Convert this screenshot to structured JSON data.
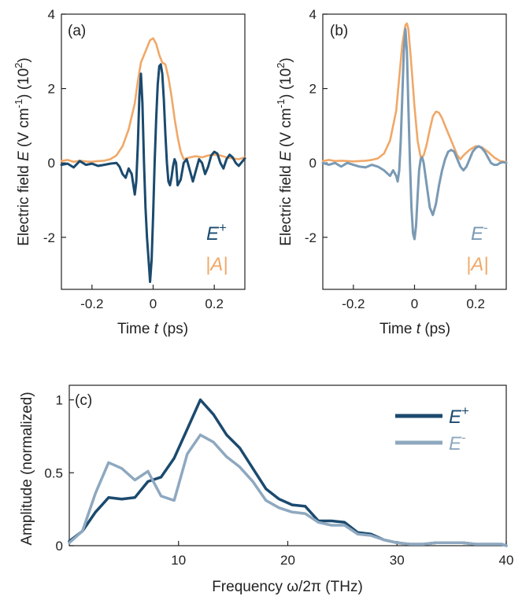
{
  "chart_data": [
    {
      "type": "line",
      "panel_label": "(a)",
      "xlabel": "Time",
      "xlabel_symbol": "t",
      "xlabel_unit": "(ps)",
      "ylabel": "Electric field",
      "ylabel_symbol": "E",
      "ylabel_unit": "(V cm",
      "ylabel_unit_exp": "-1",
      "ylabel_scale": "(10",
      "ylabel_scale_exp": "2",
      "ylabel_close": ")",
      "xlim": [
        -0.3,
        0.3
      ],
      "ylim": [
        -3.4,
        4.0
      ],
      "xticks": [
        -0.2,
        0.0,
        0.2
      ],
      "xtick_labels": [
        "-0.2",
        "0",
        "0.2"
      ],
      "yticks": [
        -2,
        0,
        2,
        4
      ],
      "ytick_labels": [
        "-2",
        "0",
        "2",
        "4"
      ],
      "legend": [
        {
          "label": "E",
          "superscript": "+",
          "color": "#1b4a6e"
        },
        {
          "label": "|A|",
          "color": "#f0a868"
        }
      ],
      "series": [
        {
          "name": "E+",
          "color": "#1b4a6e",
          "x": [
            -0.3,
            -0.28,
            -0.26,
            -0.24,
            -0.22,
            -0.2,
            -0.18,
            -0.16,
            -0.14,
            -0.12,
            -0.11,
            -0.1,
            -0.09,
            -0.08,
            -0.07,
            -0.06,
            -0.055,
            -0.05,
            -0.045,
            -0.04,
            -0.035,
            -0.03,
            -0.025,
            -0.02,
            -0.015,
            -0.01,
            -0.005,
            0.0,
            0.005,
            0.01,
            0.015,
            0.02,
            0.025,
            0.03,
            0.035,
            0.04,
            0.045,
            0.05,
            0.055,
            0.06,
            0.065,
            0.07,
            0.075,
            0.08,
            0.09,
            0.1,
            0.11,
            0.12,
            0.13,
            0.14,
            0.15,
            0.16,
            0.17,
            0.18,
            0.19,
            0.2,
            0.21,
            0.22,
            0.23,
            0.24,
            0.25,
            0.26,
            0.27,
            0.28,
            0.29,
            0.3
          ],
          "y": [
            -0.05,
            -0.02,
            -0.12,
            0.05,
            -0.05,
            -0.02,
            -0.08,
            -0.05,
            -0.02,
            0.0,
            -0.1,
            -0.3,
            -0.4,
            -0.15,
            -0.3,
            -0.85,
            -0.5,
            0.5,
            1.8,
            2.4,
            1.6,
            0.0,
            -1.2,
            -2.0,
            -2.6,
            -3.2,
            -2.6,
            -1.4,
            0.0,
            1.2,
            2.1,
            2.6,
            2.65,
            2.4,
            1.7,
            0.8,
            0.0,
            -0.5,
            -0.6,
            -0.4,
            -0.1,
            0.1,
            0.0,
            -0.6,
            -0.45,
            0.0,
            0.1,
            -0.2,
            -0.5,
            -0.2,
            0.1,
            0.0,
            -0.3,
            -0.1,
            0.2,
            0.3,
            0.25,
            0.0,
            -0.15,
            0.1,
            0.22,
            0.15,
            0.0,
            -0.08,
            0.02,
            0.12
          ]
        },
        {
          "name": "|A|",
          "color": "#f0a868",
          "x": [
            -0.3,
            -0.28,
            -0.26,
            -0.24,
            -0.22,
            -0.2,
            -0.18,
            -0.16,
            -0.14,
            -0.12,
            -0.1,
            -0.08,
            -0.06,
            -0.05,
            -0.04,
            -0.03,
            -0.02,
            -0.01,
            0.0,
            0.01,
            0.02,
            0.03,
            0.04,
            0.05,
            0.06,
            0.07,
            0.08,
            0.09,
            0.1,
            0.12,
            0.14,
            0.16,
            0.18,
            0.2,
            0.22,
            0.24,
            0.26,
            0.28,
            0.3
          ],
          "y": [
            0.05,
            0.08,
            0.03,
            0.06,
            0.04,
            0.03,
            0.05,
            0.06,
            0.1,
            0.2,
            0.45,
            0.9,
            1.6,
            2.2,
            2.7,
            2.9,
            3.1,
            3.3,
            3.35,
            3.2,
            2.9,
            2.7,
            2.65,
            2.3,
            1.8,
            1.2,
            0.7,
            0.3,
            0.1,
            0.15,
            0.18,
            0.15,
            0.2,
            0.22,
            0.2,
            0.15,
            0.12,
            0.1,
            0.15
          ]
        }
      ]
    },
    {
      "type": "line",
      "panel_label": "(b)",
      "xlabel": "Time",
      "xlabel_symbol": "t",
      "xlabel_unit": "(ps)",
      "ylabel": "Electric field",
      "ylabel_symbol": "E",
      "ylabel_unit": "(V cm",
      "ylabel_unit_exp": "-1",
      "ylabel_scale": "(10",
      "ylabel_scale_exp": "2",
      "ylabel_close": ")",
      "xlim": [
        -0.3,
        0.3
      ],
      "ylim": [
        -3.4,
        4.0
      ],
      "xticks": [
        -0.2,
        0.0,
        0.2
      ],
      "xtick_labels": [
        "-0.2",
        "0",
        "0.2"
      ],
      "yticks": [
        -2,
        0,
        2,
        4
      ],
      "ytick_labels": [
        "-2",
        "0",
        "2",
        "4"
      ],
      "legend": [
        {
          "label": "E",
          "superscript": "-",
          "color": "#7a9ab4"
        },
        {
          "label": "|A|",
          "color": "#f0a868"
        }
      ],
      "series": [
        {
          "name": "E-",
          "color": "#7a9ab4",
          "x": [
            -0.3,
            -0.28,
            -0.26,
            -0.24,
            -0.22,
            -0.2,
            -0.18,
            -0.16,
            -0.14,
            -0.12,
            -0.1,
            -0.08,
            -0.07,
            -0.06,
            -0.055,
            -0.05,
            -0.045,
            -0.04,
            -0.035,
            -0.03,
            -0.025,
            -0.02,
            -0.015,
            -0.01,
            -0.005,
            0.0,
            0.005,
            0.01,
            0.015,
            0.02,
            0.025,
            0.03,
            0.04,
            0.05,
            0.06,
            0.07,
            0.08,
            0.09,
            0.1,
            0.11,
            0.12,
            0.13,
            0.14,
            0.15,
            0.16,
            0.17,
            0.18,
            0.19,
            0.2,
            0.21,
            0.22,
            0.23,
            0.24,
            0.25,
            0.26,
            0.27,
            0.28,
            0.29,
            0.3
          ],
          "y": [
            0.0,
            -0.05,
            0.0,
            -0.1,
            0.0,
            -0.05,
            -0.1,
            -0.12,
            -0.05,
            -0.1,
            -0.2,
            -0.35,
            -0.2,
            -0.35,
            -0.5,
            -0.2,
            0.6,
            1.8,
            3.0,
            3.6,
            3.0,
            1.5,
            0.0,
            -1.2,
            -1.9,
            -2.05,
            -1.7,
            -0.9,
            -0.2,
            0.1,
            0.15,
            0.0,
            -0.6,
            -1.2,
            -1.4,
            -1.1,
            -0.6,
            -0.2,
            0.1,
            0.3,
            0.35,
            0.3,
            0.1,
            -0.1,
            -0.2,
            -0.1,
            0.1,
            0.3,
            0.4,
            0.45,
            0.4,
            0.3,
            0.15,
            0.0,
            -0.05,
            -0.05,
            0.0,
            0.02,
            0.0
          ]
        },
        {
          "name": "|A|",
          "color": "#f0a868",
          "x": [
            -0.3,
            -0.28,
            -0.26,
            -0.24,
            -0.22,
            -0.2,
            -0.18,
            -0.16,
            -0.14,
            -0.12,
            -0.1,
            -0.08,
            -0.06,
            -0.05,
            -0.04,
            -0.03,
            -0.025,
            -0.02,
            -0.01,
            0.0,
            0.01,
            0.02,
            0.03,
            0.04,
            0.05,
            0.06,
            0.07,
            0.08,
            0.09,
            0.1,
            0.11,
            0.12,
            0.13,
            0.14,
            0.15,
            0.16,
            0.18,
            0.2,
            0.22,
            0.24,
            0.26,
            0.28,
            0.3
          ],
          "y": [
            0.05,
            0.08,
            0.05,
            0.06,
            0.05,
            0.04,
            0.05,
            0.06,
            0.08,
            0.12,
            0.25,
            0.6,
            1.4,
            2.3,
            3.2,
            3.7,
            3.75,
            3.6,
            2.6,
            1.5,
            0.6,
            0.15,
            0.2,
            0.5,
            0.9,
            1.25,
            1.38,
            1.35,
            1.2,
            1.0,
            0.8,
            0.6,
            0.4,
            0.2,
            0.1,
            0.2,
            0.35,
            0.45,
            0.42,
            0.3,
            0.15,
            0.05,
            0.02
          ]
        }
      ]
    },
    {
      "type": "line",
      "panel_label": "(c)",
      "xlabel": "Frequency ω/2π (THz)",
      "ylabel": "Amplitude (normalized)",
      "xlim": [
        0,
        40
      ],
      "ylim": [
        0,
        1.1
      ],
      "xticks": [
        10,
        20,
        30,
        40
      ],
      "xtick_labels": [
        "10",
        "20",
        "30",
        "40"
      ],
      "yticks": [
        0,
        0.5,
        1
      ],
      "ytick_labels": [
        "0",
        "0.5",
        "1"
      ],
      "legend": [
        {
          "label": "E",
          "superscript": "+",
          "color": "#1b4a6e"
        },
        {
          "label": "E",
          "superscript": "-",
          "color": "#8ea8bf"
        }
      ],
      "series": [
        {
          "name": "E+",
          "color": "#1b4a6e",
          "x": [
            0,
            1.2,
            2.4,
            3.6,
            4.8,
            6.0,
            7.2,
            8.4,
            9.6,
            10.8,
            12.0,
            13.2,
            14.4,
            15.6,
            16.8,
            18.0,
            19.2,
            20.4,
            21.6,
            22.8,
            24.0,
            25.2,
            26.4,
            27.6,
            28.8,
            30.0,
            31.2,
            32.4,
            33.6,
            34.8,
            36.0,
            37.2,
            38.4,
            39.6,
            40
          ],
          "y": [
            0.03,
            0.1,
            0.23,
            0.33,
            0.32,
            0.33,
            0.44,
            0.47,
            0.6,
            0.8,
            1.0,
            0.9,
            0.76,
            0.67,
            0.53,
            0.39,
            0.32,
            0.28,
            0.27,
            0.17,
            0.17,
            0.16,
            0.09,
            0.08,
            0.04,
            0.02,
            0.01,
            0.01,
            0.02,
            0.02,
            0.02,
            0.01,
            0.01,
            0.01,
            0.0
          ]
        },
        {
          "name": "E-",
          "color": "#8ea8bf",
          "x": [
            0,
            1.2,
            2.4,
            3.6,
            4.8,
            6.0,
            7.2,
            8.4,
            9.6,
            10.8,
            12.0,
            13.2,
            14.4,
            15.6,
            16.8,
            18.0,
            19.2,
            20.4,
            21.6,
            22.8,
            24.0,
            25.2,
            26.4,
            27.6,
            28.8,
            30.0,
            31.2,
            32.4,
            33.6,
            34.8,
            36.0,
            37.2,
            38.4,
            39.6,
            40
          ],
          "y": [
            0.02,
            0.1,
            0.36,
            0.57,
            0.53,
            0.45,
            0.51,
            0.34,
            0.31,
            0.63,
            0.76,
            0.71,
            0.61,
            0.54,
            0.44,
            0.31,
            0.26,
            0.23,
            0.22,
            0.16,
            0.14,
            0.14,
            0.08,
            0.07,
            0.04,
            0.02,
            0.01,
            0.01,
            0.02,
            0.02,
            0.02,
            0.01,
            0.01,
            0.01,
            0.0
          ]
        }
      ]
    }
  ]
}
